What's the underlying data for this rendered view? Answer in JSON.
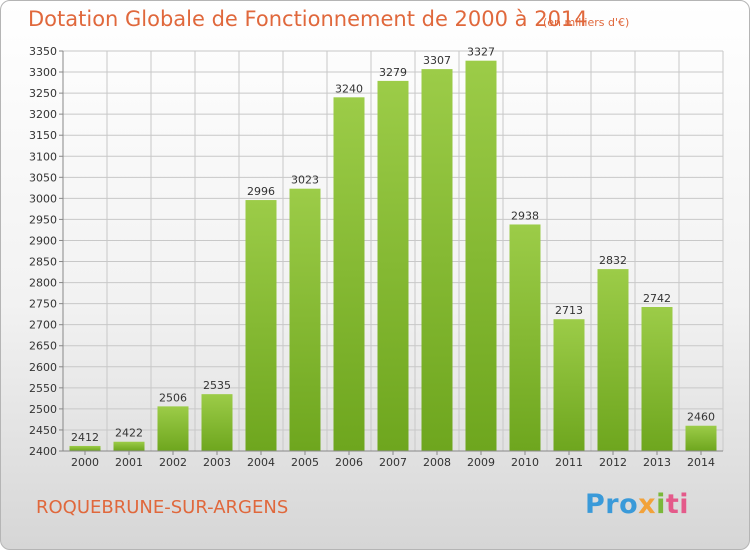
{
  "chart_data": {
    "type": "bar",
    "title": "Dotation Globale de Fonctionnement de 2000 à 2014",
    "subtitle": "(en milliers d'€)",
    "categories": [
      "2000",
      "2001",
      "2002",
      "2003",
      "2004",
      "2005",
      "2006",
      "2007",
      "2008",
      "2009",
      "2010",
      "2011",
      "2012",
      "2013",
      "2014"
    ],
    "values": [
      2412,
      2422,
      2506,
      2535,
      2996,
      3023,
      3240,
      3279,
      3307,
      3327,
      2938,
      2713,
      2832,
      2742,
      2460
    ],
    "ylim": [
      2400,
      3350
    ],
    "ytick_step": 50,
    "xlabel": "",
    "ylabel": "",
    "grid": true,
    "colors": {
      "bar_top": "#9ccc48",
      "bar_bottom": "#6ea61e",
      "grid": "#c8c8c8",
      "text": "#333333",
      "accent": "#e0683c"
    }
  },
  "footer": {
    "commune": "ROQUEBRUNE-SUR-ARGENS",
    "brand_parts": [
      "Pro",
      "x",
      "i",
      "ti"
    ]
  }
}
